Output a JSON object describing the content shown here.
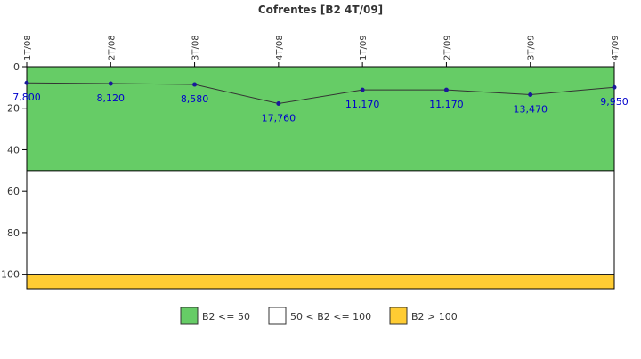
{
  "chart_data": {
    "type": "line",
    "title": "Cofrentes [B2 4T/09]",
    "xlabel": "",
    "ylabel": "",
    "categories": [
      "1T/08",
      "2T/08",
      "3T/08",
      "4T/08",
      "1T/09",
      "2T/09",
      "3T/09",
      "4T/09"
    ],
    "series": [
      {
        "values": [
          7.8,
          8.12,
          8.58,
          17.76,
          11.17,
          11.17,
          13.47,
          9.95
        ],
        "labels": [
          "7,800",
          "8,120",
          "8,580",
          "17,760",
          "11,170",
          "11,170",
          "13,470",
          "9,950"
        ]
      }
    ],
    "y_axis": {
      "inverted": true,
      "ylim": [
        0,
        107
      ],
      "ticks": [
        0,
        20,
        40,
        60,
        80,
        100
      ]
    },
    "x_axis_position": "top",
    "grid": false,
    "bands": [
      {
        "from": 0,
        "to": 50,
        "color": "#66cc66"
      },
      {
        "from": 50,
        "to": 100,
        "color": "#ffffff"
      },
      {
        "from": 100,
        "to": 107,
        "color": "#ffcc33"
      }
    ],
    "legend": {
      "position": "bottom",
      "entries": [
        {
          "label": "B2 <= 50",
          "color": "#66cc66"
        },
        {
          "label": "50 < B2 <= 100",
          "color": "#ffffff"
        },
        {
          "label": "B2 > 100",
          "color": "#ffcc33"
        }
      ]
    },
    "colors": {
      "line": "#333333",
      "marker": "#1a1a99",
      "data_label": "#0000cc"
    }
  }
}
